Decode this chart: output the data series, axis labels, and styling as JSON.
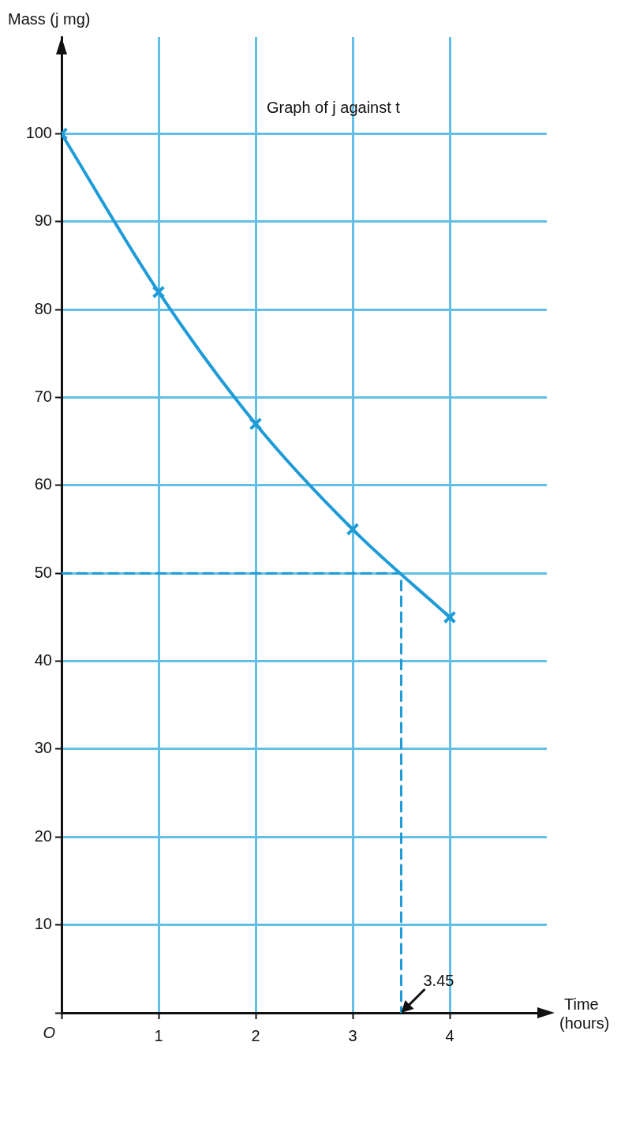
{
  "chart_data": {
    "type": "line",
    "title": "Graph of j against t",
    "xlabel": "Time (hours)",
    "ylabel": "Mass (j mg)",
    "xlim": [
      0,
      5
    ],
    "ylim": [
      0,
      111
    ],
    "xticks": [
      {
        "value": 0,
        "label": null
      },
      1,
      2,
      3,
      4
    ],
    "yticks": [
      {
        "value": 0,
        "label": null
      },
      10,
      20,
      30,
      40,
      50,
      60,
      70,
      80,
      90,
      100
    ],
    "grid": true,
    "legend": false,
    "series": [
      {
        "color": "#1f9bd7",
        "x": [
          0,
          1,
          2,
          3,
          4
        ],
        "values": [
          100,
          82,
          67,
          55,
          45
        ],
        "marker": "cross",
        "line_style": "solid"
      },
      {
        "color": "#1f9bd7",
        "x": [
          0,
          3.5,
          3.5
        ],
        "values": [
          50,
          50,
          0
        ],
        "marker": "none",
        "line_style": "dashed"
      }
    ],
    "annotations": [
      {
        "text": "3.45",
        "x": 3.5,
        "y": 0
      },
      "O"
    ]
  }
}
